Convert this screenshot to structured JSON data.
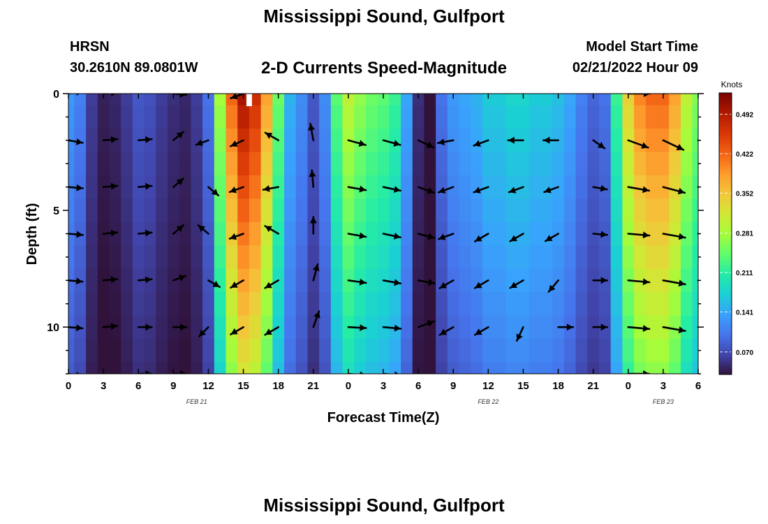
{
  "titles": {
    "main": "Mississippi Sound, Gulfport",
    "station_code": "HRSN",
    "station_coords": "30.2610N  89.0801W",
    "product": "2-D Currents Speed-Magnitude",
    "model_start_label": "Model Start Time",
    "model_start_value": "02/21/2022 Hour 09",
    "bottom_repeat": "Mississippi Sound, Gulfport"
  },
  "chart_data": {
    "type": "heatmap",
    "xlabel": "Forecast Time(Z)",
    "ylabel": "Depth (ft)",
    "colorbar_label": "Knots",
    "x_range_hours": [
      0,
      54
    ],
    "x_tick_labels": [
      "0",
      "3",
      "6",
      "9",
      "12",
      "15",
      "18",
      "21",
      "0",
      "3",
      "6",
      "9",
      "12",
      "15",
      "18",
      "21",
      "0",
      "3",
      "6"
    ],
    "date_labels": [
      {
        "text": "FEB 21",
        "hour": 11
      },
      {
        "text": "FEB 22",
        "hour": 36
      },
      {
        "text": "FEB 23",
        "hour": 51
      }
    ],
    "y_range_ft": [
      0,
      12
    ],
    "y_ticks": [
      0,
      5,
      10
    ],
    "colorbar": {
      "range": [
        0.03,
        0.53
      ],
      "ticks": [
        0.07,
        0.141,
        0.211,
        0.281,
        0.352,
        0.422,
        0.492
      ],
      "tick_labels": [
        "0.070",
        "0.141",
        "0.211",
        "0.281",
        "0.352",
        "0.422",
        "0.492"
      ]
    },
    "colormap": [
      "#30123b",
      "#4145ab",
      "#4675ed",
      "#39a2fc",
      "#1bcfd4",
      "#24eca6",
      "#61fc6c",
      "#a4fc3b",
      "#d1e834",
      "#f3c63a",
      "#fe9b2d",
      "#f36315",
      "#d93806",
      "#b11901",
      "#7a0402"
    ],
    "hours": [
      0,
      1,
      2,
      3,
      4,
      5,
      6,
      7,
      8,
      9,
      10,
      11,
      12,
      13,
      14,
      15,
      16,
      17,
      18,
      19,
      20,
      21,
      22,
      23,
      24,
      25,
      26,
      27,
      28,
      29,
      30,
      31,
      32,
      33,
      34,
      35,
      36,
      37,
      38,
      39,
      40,
      41,
      42,
      43,
      44,
      45,
      46,
      47,
      48,
      49,
      50,
      51,
      52,
      53,
      54
    ],
    "surface_speed_knots": [
      0.13,
      0.11,
      0.06,
      0.04,
      0.045,
      0.06,
      0.08,
      0.075,
      0.06,
      0.05,
      0.045,
      0.06,
      0.1,
      0.28,
      0.42,
      0.5,
      0.47,
      0.38,
      0.25,
      0.15,
      0.12,
      0.08,
      0.12,
      0.24,
      0.3,
      0.27,
      0.25,
      0.24,
      0.22,
      0.14,
      0.05,
      0.03,
      0.1,
      0.13,
      0.14,
      0.15,
      0.17,
      0.17,
      0.18,
      0.18,
      0.17,
      0.17,
      0.16,
      0.14,
      0.11,
      0.09,
      0.1,
      0.22,
      0.34,
      0.4,
      0.42,
      0.42,
      0.38,
      0.3,
      0.26
    ],
    "depth_factor": [
      1.0,
      0.97,
      0.94,
      0.91,
      0.88,
      0.85,
      0.82,
      0.79,
      0.76,
      0.73,
      0.7,
      0.67,
      0.64
    ],
    "vectors": {
      "depths_ft": [
        0,
        2,
        4,
        6,
        8,
        10,
        12
      ],
      "hours": [
        0,
        3,
        6,
        9,
        12,
        15,
        18,
        21,
        24,
        27,
        30,
        33,
        36,
        39,
        42,
        45,
        48,
        51,
        54
      ],
      "rows": [
        [
          [
            0.11,
            10
          ],
          [
            0.1,
            5
          ],
          null,
          [
            0.06,
            -5
          ],
          [
            0.05,
            120
          ],
          [
            0.08,
            200
          ],
          [
            0.12,
            160
          ],
          null,
          null,
          null,
          null,
          null,
          null,
          null,
          null,
          null,
          [
            0.38,
            0
          ],
          [
            0.42,
            10
          ],
          [
            0.4,
            15
          ]
        ],
        [
          [
            0.12,
            -10
          ],
          [
            0.1,
            5
          ],
          [
            0.08,
            5
          ],
          [
            0.07,
            40
          ],
          [
            0.07,
            200
          ],
          [
            0.1,
            205
          ],
          [
            0.14,
            150
          ],
          [
            0.2,
            100
          ],
          [
            0.24,
            -15
          ],
          [
            0.23,
            -15
          ],
          [
            0.2,
            -25
          ],
          [
            0.16,
            190
          ],
          [
            0.15,
            200
          ],
          [
            0.14,
            180
          ],
          [
            0.13,
            180
          ],
          [
            0.1,
            -35
          ],
          [
            0.36,
            -20
          ],
          [
            0.4,
            -25
          ],
          [
            0.4,
            -15
          ]
        ],
        [
          [
            0.12,
            -5
          ],
          [
            0.1,
            5
          ],
          [
            0.08,
            5
          ],
          [
            0.07,
            40
          ],
          [
            0.07,
            -40
          ],
          [
            0.12,
            200
          ],
          [
            0.15,
            190
          ],
          [
            0.2,
            95
          ],
          [
            0.24,
            -10
          ],
          [
            0.23,
            -12
          ],
          [
            0.2,
            -20
          ],
          [
            0.16,
            200
          ],
          [
            0.15,
            200
          ],
          [
            0.14,
            200
          ],
          [
            0.13,
            200
          ],
          [
            0.1,
            -10
          ],
          [
            0.36,
            -10
          ],
          [
            0.4,
            -15
          ],
          [
            0.4,
            -20
          ]
        ],
        [
          [
            0.12,
            -5
          ],
          [
            0.1,
            5
          ],
          [
            0.08,
            5
          ],
          [
            0.07,
            40
          ],
          [
            0.07,
            140
          ],
          [
            0.12,
            200
          ],
          [
            0.15,
            150
          ],
          [
            0.2,
            90
          ],
          [
            0.24,
            -10
          ],
          [
            0.23,
            -12
          ],
          [
            0.2,
            -15
          ],
          [
            0.16,
            200
          ],
          [
            0.15,
            210
          ],
          [
            0.14,
            210
          ],
          [
            0.13,
            210
          ],
          [
            0.1,
            -5
          ],
          [
            0.36,
            -5
          ],
          [
            0.4,
            -10
          ],
          [
            0.4,
            -15
          ]
        ],
        [
          [
            0.11,
            -5
          ],
          [
            0.1,
            5
          ],
          [
            0.08,
            5
          ],
          [
            0.07,
            20
          ],
          [
            0.07,
            -30
          ],
          [
            0.12,
            210
          ],
          [
            0.15,
            210
          ],
          [
            0.2,
            75
          ],
          [
            0.24,
            -8
          ],
          [
            0.23,
            -10
          ],
          [
            0.2,
            -10
          ],
          [
            0.16,
            210
          ],
          [
            0.15,
            210
          ],
          [
            0.14,
            210
          ],
          [
            0.13,
            230
          ],
          [
            0.1,
            0
          ],
          [
            0.36,
            -5
          ],
          [
            0.4,
            -10
          ],
          [
            0.4,
            -15
          ]
        ],
        [
          [
            0.11,
            -5
          ],
          [
            0.1,
            5
          ],
          [
            0.08,
            0
          ],
          [
            0.07,
            0
          ],
          [
            0.07,
            225
          ],
          [
            0.12,
            210
          ],
          [
            0.15,
            210
          ],
          [
            0.2,
            70
          ],
          [
            0.24,
            -3
          ],
          [
            0.23,
            -5
          ],
          [
            0.2,
            20
          ],
          [
            0.16,
            210
          ],
          [
            0.15,
            210
          ],
          [
            0.14,
            245
          ],
          [
            0.13,
            0
          ],
          [
            0.1,
            0
          ],
          [
            0.36,
            -5
          ],
          [
            0.4,
            -10
          ],
          [
            0.4,
            -15
          ]
        ],
        [
          [
            0.11,
            -10
          ],
          null,
          [
            0.08,
            0
          ],
          [
            0.07,
            0
          ],
          [
            0.07,
            -20
          ],
          null,
          null,
          null,
          [
            0.24,
            -5
          ],
          [
            0.23,
            -5
          ],
          null,
          null,
          null,
          null,
          null,
          null,
          [
            0.36,
            0
          ],
          [
            0.4,
            -10
          ],
          [
            0.4,
            -15
          ]
        ]
      ]
    },
    "marker_hour": 15.5
  }
}
